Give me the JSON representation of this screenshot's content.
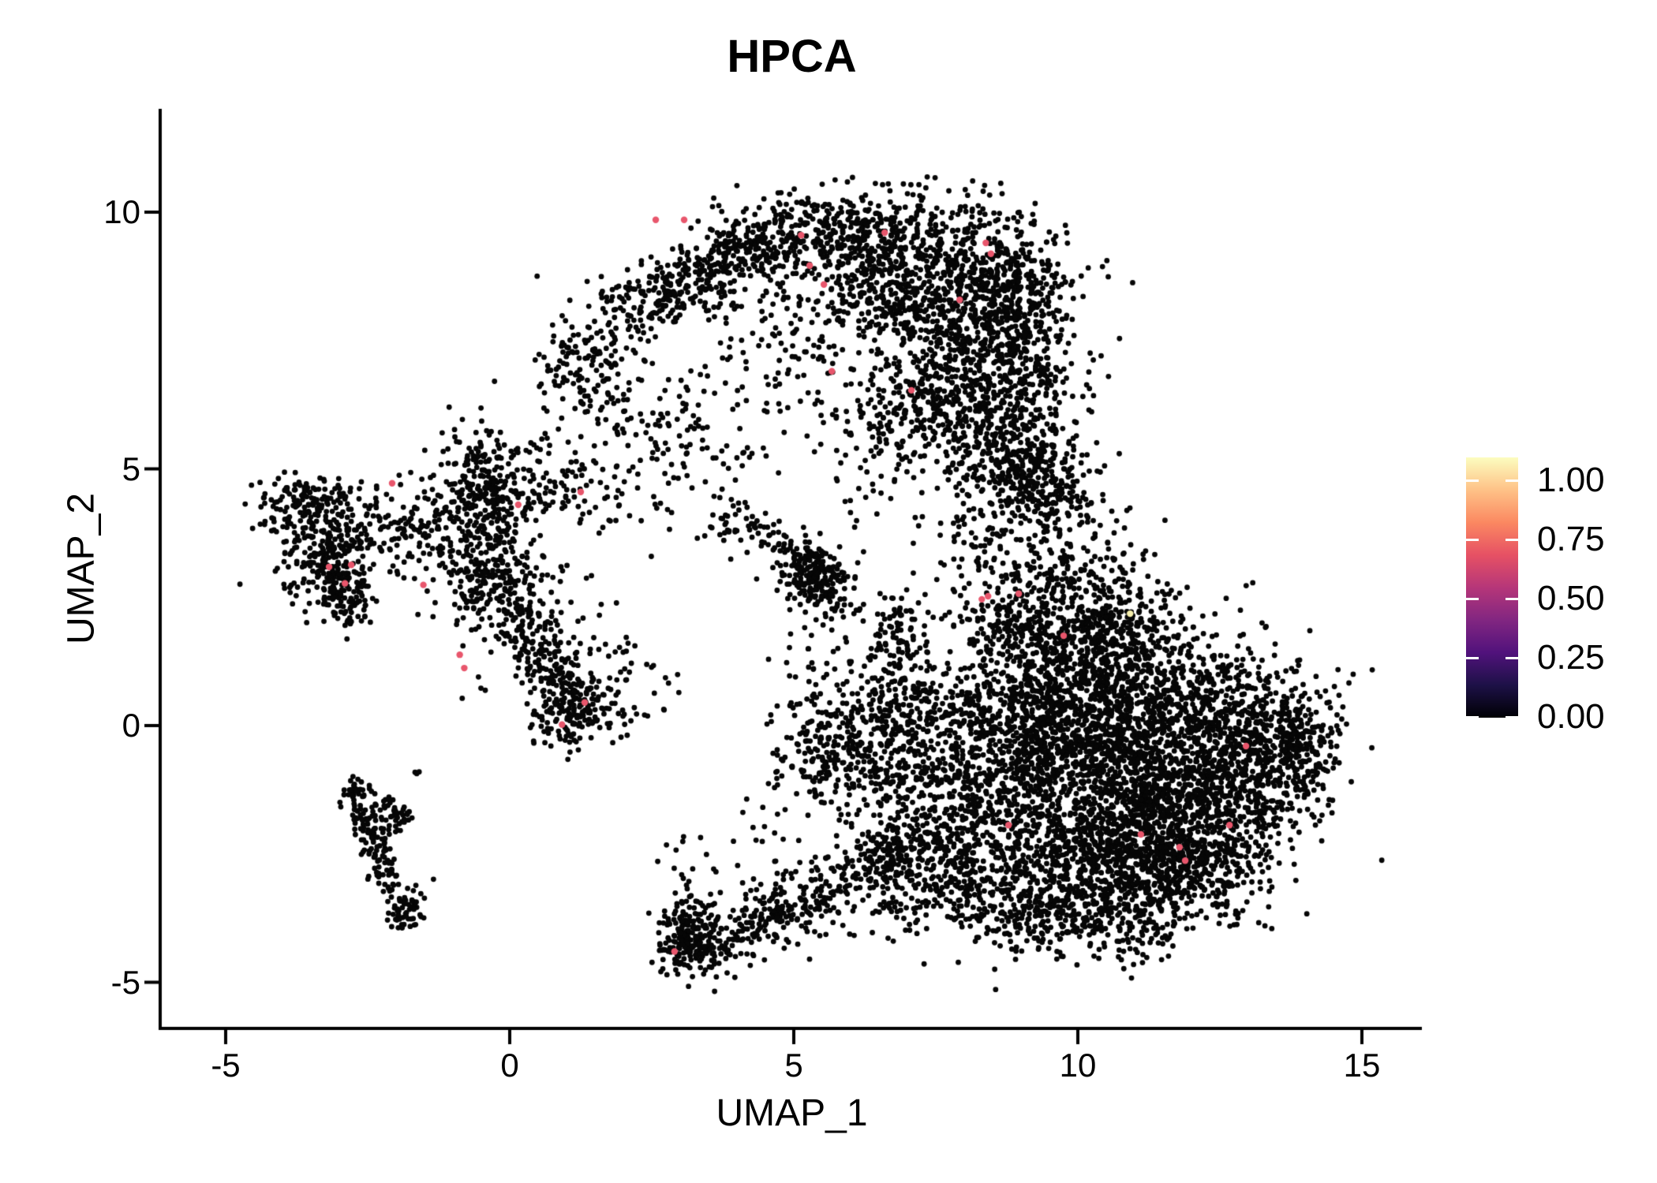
{
  "chart_data": {
    "type": "scatter",
    "title": "HPCA",
    "xlabel": "UMAP_1",
    "ylabel": "UMAP_2",
    "x_ticks": [
      -5,
      0,
      5,
      10,
      15
    ],
    "y_ticks": [
      10,
      5,
      0,
      -5
    ],
    "xlim": [
      -6.1,
      16.1
    ],
    "ylim": [
      -5.9,
      12.0
    ],
    "grid": false,
    "legend_position": "right",
    "axis_color": "#000000",
    "point_color": "#060606",
    "legend": {
      "tick_labels": [
        "1.00",
        "0.75",
        "0.50",
        "0.25",
        "0.00"
      ],
      "tick_values": [
        1.0,
        0.75,
        0.5,
        0.25,
        0.0
      ],
      "palette": "magma",
      "gradient_stops": [
        "#000004",
        "#1D1147",
        "#51127C",
        "#822681",
        "#B63679",
        "#E65164",
        "#FB8861",
        "#FEC287",
        "#FCFDBF"
      ]
    },
    "clusters": [
      {
        "type": "streak",
        "x1": 2.0,
        "y1": 8.05,
        "x2": 4.8,
        "y2": 9.55,
        "sd": 0.38,
        "n": 420
      },
      {
        "type": "blob",
        "x": 1.35,
        "y": 7.1,
        "sx": 0.45,
        "sy": 0.5,
        "n": 130
      },
      {
        "type": "streak",
        "x1": 1.6,
        "y1": 6.5,
        "x2": 2.9,
        "y2": 5.1,
        "sd": 0.3,
        "n": 55
      },
      {
        "type": "blob",
        "x": 5.8,
        "y": 9.6,
        "sx": 0.9,
        "sy": 0.42,
        "n": 300
      },
      {
        "type": "blob",
        "x": 7.3,
        "y": 8.7,
        "sx": 1.05,
        "sy": 0.75,
        "n": 850
      },
      {
        "type": "blob",
        "x": 8.9,
        "y": 8.35,
        "sx": 0.45,
        "sy": 0.75,
        "n": 230
      },
      {
        "type": "blob",
        "x": 8.45,
        "y": 6.9,
        "sx": 0.75,
        "sy": 0.85,
        "n": 620
      },
      {
        "type": "blob",
        "x": 7.0,
        "y": 6.0,
        "sx": 0.6,
        "sy": 0.55,
        "n": 210
      },
      {
        "type": "blob",
        "x": 4.85,
        "y": 7.5,
        "sx": 1.0,
        "sy": 0.85,
        "n": 130
      },
      {
        "type": "blob",
        "x": 3.3,
        "y": 6.1,
        "sx": 0.8,
        "sy": 0.6,
        "n": 55
      },
      {
        "type": "streak",
        "x1": 8.3,
        "y1": 5.6,
        "x2": 9.9,
        "y2": 4.15,
        "sd": 0.5,
        "n": 330
      },
      {
        "type": "blob",
        "x": 9.05,
        "y": 4.9,
        "sx": 0.5,
        "sy": 0.6,
        "n": 150
      },
      {
        "type": "blob",
        "x": 9.3,
        "y": 2.2,
        "sx": 0.8,
        "sy": 0.85,
        "n": 500
      },
      {
        "type": "blob",
        "x": 10.6,
        "y": 2.1,
        "sx": 0.65,
        "sy": 0.6,
        "n": 230
      },
      {
        "type": "blob",
        "x": 10.3,
        "y": 0.6,
        "sx": 1.0,
        "sy": 0.8,
        "n": 700
      },
      {
        "type": "blob",
        "x": 11.8,
        "y": 0.3,
        "sx": 1.0,
        "sy": 0.75,
        "n": 600
      },
      {
        "type": "blob",
        "x": 13.3,
        "y": -0.35,
        "sx": 0.6,
        "sy": 0.7,
        "n": 380
      },
      {
        "type": "blob",
        "x": 14.0,
        "y": -0.4,
        "sx": 0.32,
        "sy": 0.45,
        "n": 120
      },
      {
        "type": "blob",
        "x": 10.8,
        "y": -1.3,
        "sx": 1.1,
        "sy": 0.85,
        "n": 900
      },
      {
        "type": "blob",
        "x": 12.3,
        "y": -1.7,
        "sx": 0.8,
        "sy": 0.7,
        "n": 500
      },
      {
        "type": "blob",
        "x": 10.2,
        "y": -2.7,
        "sx": 0.9,
        "sy": 0.6,
        "n": 550
      },
      {
        "type": "blob",
        "x": 11.9,
        "y": -2.9,
        "sx": 0.75,
        "sy": 0.5,
        "n": 350
      },
      {
        "type": "blob",
        "x": 9.0,
        "y": -0.3,
        "sx": 0.7,
        "sy": 0.8,
        "n": 420
      },
      {
        "type": "blob",
        "x": 8.3,
        "y": -1.6,
        "sx": 0.6,
        "sy": 0.7,
        "n": 300
      },
      {
        "type": "streak",
        "x1": 6.4,
        "y1": -2.1,
        "x2": 8.3,
        "y2": -2.9,
        "sd": 0.42,
        "n": 280
      },
      {
        "type": "blob",
        "x": 9.3,
        "y": -3.7,
        "sx": 0.6,
        "sy": 0.4,
        "n": 200
      },
      {
        "type": "blob",
        "x": 10.8,
        "y": -3.9,
        "sx": 0.5,
        "sy": 0.35,
        "n": 120
      },
      {
        "type": "blob",
        "x": 7.3,
        "y": -3.4,
        "sx": 0.6,
        "sy": 0.4,
        "n": 110
      },
      {
        "type": "blob",
        "x": 8.0,
        "y": 3.9,
        "sx": 0.5,
        "sy": 0.6,
        "n": 45
      },
      {
        "type": "streak",
        "x1": -0.55,
        "y1": 5.6,
        "x2": -0.3,
        "y2": 3.1,
        "sd": 0.33,
        "n": 270
      },
      {
        "type": "blob",
        "x": -0.35,
        "y": 2.75,
        "sx": 0.5,
        "sy": 0.45,
        "n": 170
      },
      {
        "type": "blob",
        "x": -1.45,
        "y": 3.7,
        "sx": 0.55,
        "sy": 0.55,
        "n": 90
      },
      {
        "type": "streak",
        "x1": -1.3,
        "y1": 4.4,
        "x2": 1.25,
        "y2": 4.5,
        "sd": 0.3,
        "n": 110
      },
      {
        "type": "streak",
        "x1": 0.3,
        "y1": 5.4,
        "x2": 2.3,
        "y2": 4.1,
        "sd": 0.35,
        "n": 80
      },
      {
        "type": "streak",
        "x1": 0.1,
        "y1": 2.4,
        "x2": 1.25,
        "y2": 0.1,
        "sd": 0.28,
        "n": 230
      },
      {
        "type": "blob",
        "x": 1.0,
        "y": 0.15,
        "sx": 0.3,
        "sy": 0.3,
        "n": 90
      },
      {
        "type": "blob",
        "x": 1.85,
        "y": 0.75,
        "sx": 0.5,
        "sy": 0.5,
        "n": 70
      },
      {
        "type": "blob",
        "x": 0.4,
        "y": 1.9,
        "sx": 0.7,
        "sy": 0.7,
        "n": 60
      },
      {
        "type": "blob",
        "x": -2.0,
        "y": 4.0,
        "sx": 0.45,
        "sy": 0.45,
        "n": 45
      },
      {
        "type": "blob",
        "x": -3.2,
        "y": 3.3,
        "sx": 0.45,
        "sy": 0.5,
        "n": 280
      },
      {
        "type": "blob",
        "x": -3.85,
        "y": 4.2,
        "sx": 0.3,
        "sy": 0.3,
        "n": 90
      },
      {
        "type": "streak",
        "x1": -3.7,
        "y1": 4.5,
        "x2": -2.7,
        "y2": 4.4,
        "sd": 0.2,
        "n": 60
      },
      {
        "type": "blob",
        "x": -2.85,
        "y": 2.4,
        "sx": 0.3,
        "sy": 0.25,
        "n": 50
      },
      {
        "type": "streak",
        "x1": 3.6,
        "y1": 4.1,
        "x2": 4.6,
        "y2": 3.7,
        "sd": 0.22,
        "n": 60
      },
      {
        "type": "streak",
        "x1": 4.9,
        "y1": 3.4,
        "x2": 5.85,
        "y2": 2.35,
        "sd": 0.28,
        "n": 170
      },
      {
        "type": "blob",
        "x": 5.5,
        "y": 2.9,
        "sx": 0.3,
        "sy": 0.3,
        "n": 70
      },
      {
        "type": "streak",
        "x1": 6.75,
        "y1": 2.4,
        "x2": 6.9,
        "y2": 1.1,
        "sd": 0.25,
        "n": 80
      },
      {
        "type": "blob",
        "x": 6.4,
        "y": 0.9,
        "sx": 0.5,
        "sy": 0.5,
        "n": 60
      },
      {
        "type": "blob",
        "x": 7.3,
        "y": 0.3,
        "sx": 0.55,
        "sy": 0.5,
        "n": 230
      },
      {
        "type": "blob",
        "x": 6.9,
        "y": -0.8,
        "sx": 0.5,
        "sy": 0.55,
        "n": 170
      },
      {
        "type": "blob",
        "x": 5.65,
        "y": -0.4,
        "sx": 0.45,
        "sy": 0.55,
        "n": 230
      },
      {
        "type": "blob",
        "x": 5.2,
        "y": 1.3,
        "sx": 0.5,
        "sy": 0.5,
        "n": 25
      },
      {
        "type": "blob",
        "x": 3.7,
        "y": 5.1,
        "sx": 0.6,
        "sy": 0.5,
        "n": 30
      },
      {
        "type": "blob",
        "x": 6.1,
        "y": 4.4,
        "sx": 0.4,
        "sy": 0.4,
        "n": 15
      },
      {
        "type": "blob",
        "x": 4.4,
        "y": -1.5,
        "sx": 0.5,
        "sy": 0.5,
        "n": 15
      },
      {
        "type": "blob",
        "x": 3.15,
        "y": -4.15,
        "sx": 0.28,
        "sy": 0.38,
        "n": 200
      },
      {
        "type": "streak",
        "x1": 3.5,
        "y1": -4.35,
        "x2": 7.0,
        "y2": -2.45,
        "sd": 0.3,
        "n": 330
      },
      {
        "type": "blob",
        "x": 4.8,
        "y": -3.2,
        "sx": 0.7,
        "sy": 0.45,
        "n": 60
      },
      {
        "type": "blob",
        "x": 3.1,
        "y": -2.7,
        "sx": 0.2,
        "sy": 0.45,
        "n": 14
      },
      {
        "type": "streak",
        "x1": -2.7,
        "y1": -1.5,
        "x2": -2.0,
        "y2": -3.2,
        "sd": 0.14,
        "n": 130
      },
      {
        "type": "blob",
        "x": -1.85,
        "y": -3.6,
        "sx": 0.18,
        "sy": 0.22,
        "n": 60
      },
      {
        "type": "streak",
        "x1": -2.3,
        "y1": -1.4,
        "x2": -1.8,
        "y2": -1.95,
        "sd": 0.12,
        "n": 45
      },
      {
        "type": "blob",
        "x": -2.7,
        "y": -1.25,
        "sx": 0.12,
        "sy": 0.12,
        "n": 25
      },
      {
        "type": "blob",
        "x": -1.65,
        "y": -1.05,
        "sx": 0.08,
        "sy": 0.1,
        "n": 3
      }
    ],
    "highlight_points": [
      {
        "x": 2.57,
        "y": 9.85,
        "value": 0.7,
        "color": "#E8566C"
      },
      {
        "x": 3.07,
        "y": 9.85,
        "value": 0.7,
        "color": "#E8566C"
      },
      {
        "x": 5.13,
        "y": 9.55,
        "value": 0.7,
        "color": "#E8566C"
      },
      {
        "x": 6.6,
        "y": 9.6,
        "value": 0.7,
        "color": "#E8566C"
      },
      {
        "x": 8.38,
        "y": 9.4,
        "value": 0.7,
        "color": "#E8566C"
      },
      {
        "x": 8.47,
        "y": 9.19,
        "value": 0.7,
        "color": "#E8566C"
      },
      {
        "x": 5.28,
        "y": 8.96,
        "value": 0.7,
        "color": "#E8566C"
      },
      {
        "x": 5.53,
        "y": 8.59,
        "value": 0.7,
        "color": "#E8566C"
      },
      {
        "x": 7.92,
        "y": 8.29,
        "value": 0.7,
        "color": "#E8566C"
      },
      {
        "x": 5.67,
        "y": 6.9,
        "value": 0.7,
        "color": "#E8566C"
      },
      {
        "x": 7.07,
        "y": 6.53,
        "value": 0.7,
        "color": "#E8566C"
      },
      {
        "x": -2.07,
        "y": 4.72,
        "value": 0.7,
        "color": "#E8566C"
      },
      {
        "x": 1.25,
        "y": 4.55,
        "value": 0.7,
        "color": "#E8566C"
      },
      {
        "x": 0.15,
        "y": 4.3,
        "value": 0.7,
        "color": "#E8566C"
      },
      {
        "x": -3.18,
        "y": 3.09,
        "value": 0.7,
        "color": "#E8566C"
      },
      {
        "x": -2.79,
        "y": 3.13,
        "value": 0.7,
        "color": "#E8566C"
      },
      {
        "x": -2.9,
        "y": 2.77,
        "value": 0.7,
        "color": "#E8566C"
      },
      {
        "x": -1.52,
        "y": 2.74,
        "value": 0.7,
        "color": "#E8566C"
      },
      {
        "x": -0.88,
        "y": 1.38,
        "value": 0.7,
        "color": "#E8566C"
      },
      {
        "x": -0.8,
        "y": 1.12,
        "value": 0.7,
        "color": "#E8566C"
      },
      {
        "x": 0.92,
        "y": 0.02,
        "value": 0.7,
        "color": "#E8566C"
      },
      {
        "x": 1.32,
        "y": 0.45,
        "value": 0.7,
        "color": "#E8566C"
      },
      {
        "x": 8.31,
        "y": 2.46,
        "value": 0.7,
        "color": "#E8566C"
      },
      {
        "x": 8.42,
        "y": 2.52,
        "value": 0.7,
        "color": "#E8566C"
      },
      {
        "x": 8.96,
        "y": 2.57,
        "value": 0.7,
        "color": "#E8566C"
      },
      {
        "x": 9.75,
        "y": 1.75,
        "value": 0.7,
        "color": "#E8566C"
      },
      {
        "x": 10.92,
        "y": 2.18,
        "value": 0.98,
        "color": "#F6EFAC"
      },
      {
        "x": 12.96,
        "y": -0.4,
        "value": 0.7,
        "color": "#E8566C"
      },
      {
        "x": 8.78,
        "y": -1.94,
        "value": 0.7,
        "color": "#E8566C"
      },
      {
        "x": 11.11,
        "y": -2.12,
        "value": 0.7,
        "color": "#E8566C"
      },
      {
        "x": 11.79,
        "y": -2.37,
        "value": 0.7,
        "color": "#E8566C"
      },
      {
        "x": 11.89,
        "y": -2.63,
        "value": 0.7,
        "color": "#E8566C"
      },
      {
        "x": 12.67,
        "y": -1.94,
        "value": 0.7,
        "color": "#E8566C"
      },
      {
        "x": 2.9,
        "y": -4.4,
        "value": 0.7,
        "color": "#E8566C"
      }
    ]
  }
}
